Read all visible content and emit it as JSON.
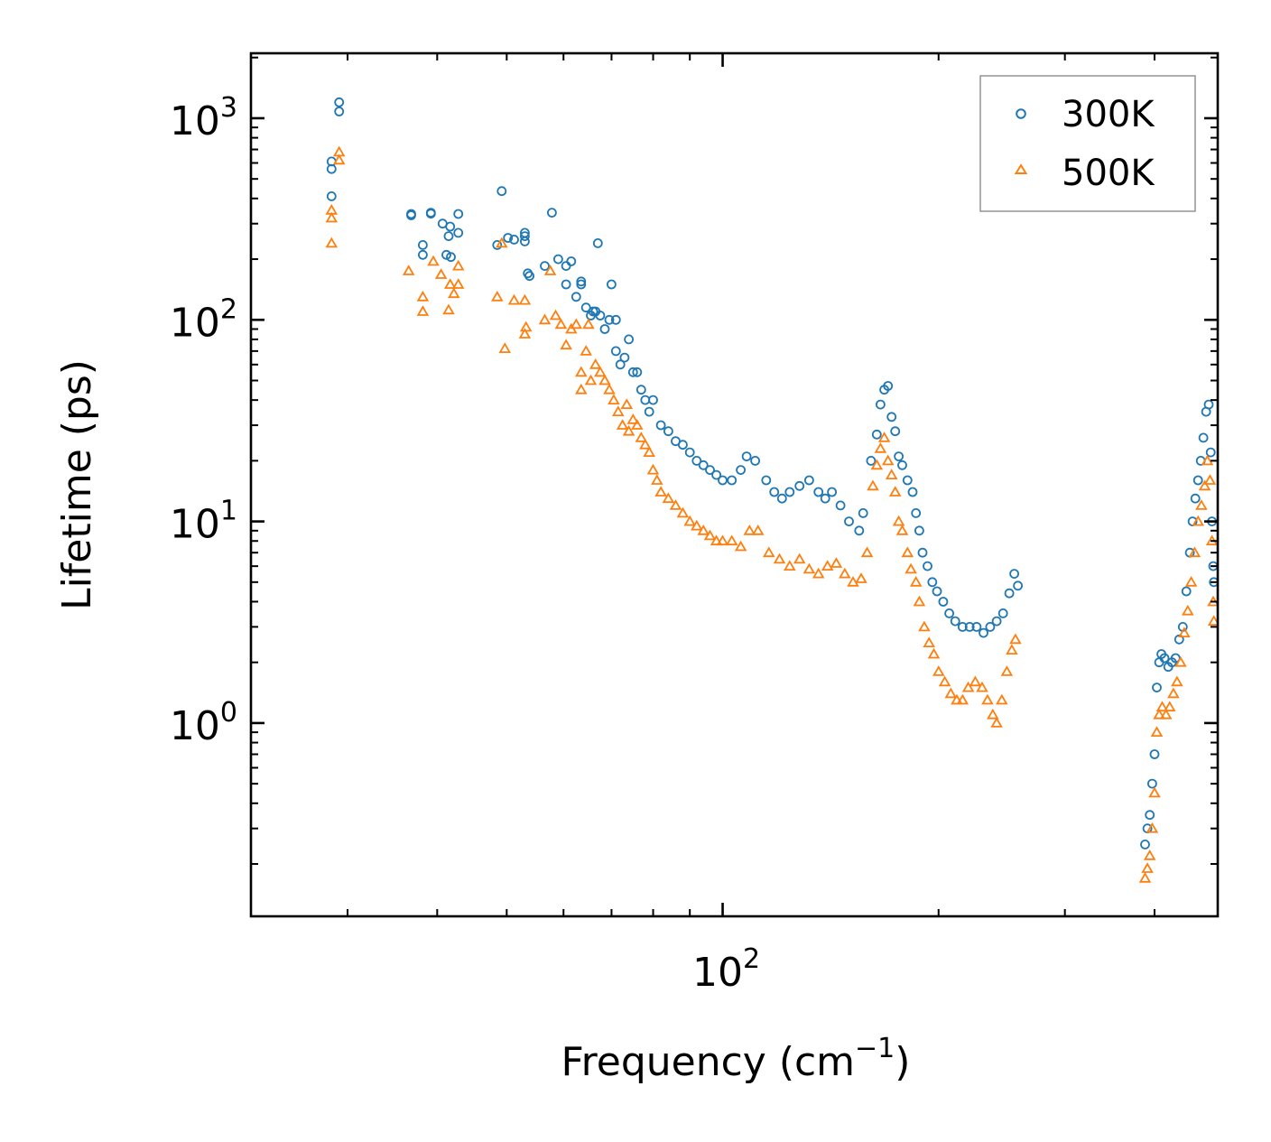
{
  "chart_data": {
    "type": "scatter",
    "xscale": "log",
    "yscale": "log",
    "xlabel": "Frequency (cm",
    "xlabel_sup": "−1",
    "xlabel_tail": ")",
    "ylabel": "Lifetime (ps)",
    "xlim": [
      22,
      490
    ],
    "ylim": [
      0.11,
      2100
    ],
    "x_ticks": [
      {
        "value": 100,
        "base": "10",
        "exp": "2"
      }
    ],
    "y_ticks": [
      {
        "value": 1,
        "base": "10",
        "exp": "0"
      },
      {
        "value": 10,
        "base": "10",
        "exp": "1"
      },
      {
        "value": 100,
        "base": "10",
        "exp": "2"
      },
      {
        "value": 1000,
        "base": "10",
        "exp": "3"
      }
    ],
    "legend_position": "top-right",
    "series": [
      {
        "name": "300K",
        "color": "#1f77b4",
        "marker": "circle",
        "points": [
          [
            28.5,
            410
          ],
          [
            28.5,
            560
          ],
          [
            28.5,
            610
          ],
          [
            29.2,
            1200
          ],
          [
            29.2,
            1080
          ],
          [
            36.8,
            335
          ],
          [
            36.8,
            330
          ],
          [
            38.2,
            235
          ],
          [
            38.2,
            210
          ],
          [
            39.2,
            340
          ],
          [
            39.2,
            336
          ],
          [
            40.7,
            300
          ],
          [
            41.7,
            290
          ],
          [
            41.5,
            260
          ],
          [
            41.8,
            205
          ],
          [
            41.2,
            210
          ],
          [
            42.8,
            335
          ],
          [
            42.8,
            270
          ],
          [
            48.5,
            235
          ],
          [
            49.2,
            435
          ],
          [
            50.2,
            255
          ],
          [
            51.2,
            250
          ],
          [
            53,
            270
          ],
          [
            53,
            260
          ],
          [
            53,
            245
          ],
          [
            53.5,
            170
          ],
          [
            53.8,
            165
          ],
          [
            56.5,
            185
          ],
          [
            57.8,
            340
          ],
          [
            59,
            200
          ],
          [
            60.5,
            150
          ],
          [
            60.5,
            185
          ],
          [
            61.5,
            195
          ],
          [
            62.5,
            130
          ],
          [
            63.5,
            155
          ],
          [
            63.5,
            150
          ],
          [
            64.5,
            115
          ],
          [
            65.5,
            105
          ],
          [
            66,
            110
          ],
          [
            67,
            240
          ],
          [
            66.5,
            110
          ],
          [
            67.5,
            105
          ],
          [
            68.5,
            90
          ],
          [
            69.5,
            100
          ],
          [
            70,
            150
          ],
          [
            71,
            100
          ],
          [
            71,
            70
          ],
          [
            72,
            60
          ],
          [
            73,
            65
          ],
          [
            74,
            80
          ],
          [
            75,
            55
          ],
          [
            76,
            55
          ],
          [
            77,
            45
          ],
          [
            78,
            40
          ],
          [
            79,
            35
          ],
          [
            80,
            40
          ],
          [
            82,
            30
          ],
          [
            84,
            28
          ],
          [
            86,
            25
          ],
          [
            88,
            24
          ],
          [
            90,
            22
          ],
          [
            92,
            20
          ],
          [
            94,
            19
          ],
          [
            96,
            18
          ],
          [
            98,
            17
          ],
          [
            100,
            16
          ],
          [
            103,
            16
          ],
          [
            106,
            18
          ],
          [
            108,
            21
          ],
          [
            111,
            20
          ],
          [
            115,
            16
          ],
          [
            118,
            14
          ],
          [
            121,
            13
          ],
          [
            124,
            14
          ],
          [
            128,
            15
          ],
          [
            132,
            16
          ],
          [
            136,
            14
          ],
          [
            139,
            13
          ],
          [
            142,
            14
          ],
          [
            146,
            12
          ],
          [
            150,
            10
          ],
          [
            155,
            9
          ],
          [
            157,
            11
          ],
          [
            161,
            20
          ],
          [
            164,
            27
          ],
          [
            166,
            38
          ],
          [
            168,
            45
          ],
          [
            170,
            47
          ],
          [
            172,
            33
          ],
          [
            174,
            28
          ],
          [
            176,
            21
          ],
          [
            178,
            19
          ],
          [
            181,
            16
          ],
          [
            184,
            14
          ],
          [
            186,
            11
          ],
          [
            188,
            9
          ],
          [
            190,
            7
          ],
          [
            193,
            6
          ],
          [
            196,
            5
          ],
          [
            199,
            4.5
          ],
          [
            203,
            4
          ],
          [
            207,
            3.5
          ],
          [
            211,
            3.2
          ],
          [
            216,
            3
          ],
          [
            221,
            3
          ],
          [
            226,
            3
          ],
          [
            231,
            2.8
          ],
          [
            236,
            3
          ],
          [
            241,
            3.2
          ],
          [
            246,
            3.5
          ],
          [
            251,
            4.4
          ],
          [
            255,
            5.5
          ],
          [
            258,
            4.8
          ],
          [
            388,
            0.25
          ],
          [
            391,
            0.3
          ],
          [
            394,
            0.35
          ],
          [
            397,
            0.5
          ],
          [
            400,
            0.7
          ],
          [
            403,
            1.5
          ],
          [
            406,
            2.0
          ],
          [
            409,
            2.2
          ],
          [
            413,
            2.1
          ],
          [
            418,
            1.9
          ],
          [
            423,
            2.0
          ],
          [
            428,
            2.1
          ],
          [
            433,
            2.6
          ],
          [
            438,
            3.0
          ],
          [
            443,
            4.5
          ],
          [
            448,
            7
          ],
          [
            452,
            10
          ],
          [
            456,
            13
          ],
          [
            460,
            16
          ],
          [
            464,
            20
          ],
          [
            468,
            26
          ],
          [
            472,
            35
          ],
          [
            476,
            38
          ],
          [
            479,
            22
          ],
          [
            481,
            10
          ],
          [
            483,
            6
          ],
          [
            484,
            5
          ]
        ]
      },
      {
        "name": "500K",
        "color": "#ff7f0e",
        "marker": "triangle",
        "points": [
          [
            28.5,
            240
          ],
          [
            28.5,
            320
          ],
          [
            28.5,
            350
          ],
          [
            29.2,
            680
          ],
          [
            29.2,
            620
          ],
          [
            36.5,
            175
          ],
          [
            38.2,
            130
          ],
          [
            38.2,
            110
          ],
          [
            39.5,
            195
          ],
          [
            40.5,
            168
          ],
          [
            41.5,
            112
          ],
          [
            41.7,
            150
          ],
          [
            42.2,
            135
          ],
          [
            42.8,
            185
          ],
          [
            42.8,
            150
          ],
          [
            48.5,
            130
          ],
          [
            49.2,
            240
          ],
          [
            49.7,
            72
          ],
          [
            51.2,
            125
          ],
          [
            53,
            125
          ],
          [
            53,
            85
          ],
          [
            53.2,
            92
          ],
          [
            56.5,
            100
          ],
          [
            57.5,
            175
          ],
          [
            58.5,
            105
          ],
          [
            59.5,
            95
          ],
          [
            60.5,
            75
          ],
          [
            61.5,
            90
          ],
          [
            62.5,
            95
          ],
          [
            63.5,
            55
          ],
          [
            63.5,
            45
          ],
          [
            64.5,
            70
          ],
          [
            65,
            95
          ],
          [
            65.5,
            50
          ],
          [
            66.5,
            60
          ],
          [
            67.5,
            55
          ],
          [
            68.5,
            50
          ],
          [
            69.5,
            45
          ],
          [
            70.5,
            40
          ],
          [
            71.5,
            35
          ],
          [
            72.5,
            30
          ],
          [
            73.5,
            38
          ],
          [
            74,
            28
          ],
          [
            75,
            32
          ],
          [
            76,
            30
          ],
          [
            77,
            26
          ],
          [
            78,
            24
          ],
          [
            79,
            22
          ],
          [
            80,
            18
          ],
          [
            81,
            16
          ],
          [
            82,
            14
          ],
          [
            84,
            13
          ],
          [
            86,
            12
          ],
          [
            88,
            11
          ],
          [
            90,
            10
          ],
          [
            92,
            9.5
          ],
          [
            94,
            9
          ],
          [
            96,
            8.5
          ],
          [
            98,
            8
          ],
          [
            100,
            8
          ],
          [
            103,
            8
          ],
          [
            106,
            7.5
          ],
          [
            109,
            9
          ],
          [
            112,
            9
          ],
          [
            116,
            7
          ],
          [
            120,
            6.5
          ],
          [
            124,
            6
          ],
          [
            128,
            6.5
          ],
          [
            132,
            5.8
          ],
          [
            136,
            5.5
          ],
          [
            140,
            6
          ],
          [
            144,
            6.2
          ],
          [
            148,
            5.5
          ],
          [
            152,
            5
          ],
          [
            156,
            5.2
          ],
          [
            159,
            7
          ],
          [
            162,
            15
          ],
          [
            164,
            19
          ],
          [
            166,
            23
          ],
          [
            168,
            26
          ],
          [
            170,
            20
          ],
          [
            172,
            17
          ],
          [
            174,
            14
          ],
          [
            176,
            10
          ],
          [
            178,
            9
          ],
          [
            181,
            7
          ],
          [
            183,
            5.8
          ],
          [
            186,
            5
          ],
          [
            188,
            4
          ],
          [
            191,
            3
          ],
          [
            194,
            2.5
          ],
          [
            197,
            2.2
          ],
          [
            200,
            1.8
          ],
          [
            204,
            1.6
          ],
          [
            208,
            1.4
          ],
          [
            212,
            1.3
          ],
          [
            216,
            1.3
          ],
          [
            220,
            1.5
          ],
          [
            225,
            1.6
          ],
          [
            230,
            1.5
          ],
          [
            234,
            1.3
          ],
          [
            238,
            1.1
          ],
          [
            241,
            1.0
          ],
          [
            245,
            1.3
          ],
          [
            249,
            1.8
          ],
          [
            253,
            2.3
          ],
          [
            256,
            2.6
          ],
          [
            388,
            0.17
          ],
          [
            391,
            0.19
          ],
          [
            394,
            0.22
          ],
          [
            397,
            0.3
          ],
          [
            400,
            0.45
          ],
          [
            403,
            0.9
          ],
          [
            406,
            1.1
          ],
          [
            410,
            1.2
          ],
          [
            415,
            1.1
          ],
          [
            420,
            1.2
          ],
          [
            425,
            1.4
          ],
          [
            430,
            1.6
          ],
          [
            435,
            2.0
          ],
          [
            440,
            2.8
          ],
          [
            445,
            3.6
          ],
          [
            450,
            5
          ],
          [
            455,
            7
          ],
          [
            460,
            10
          ],
          [
            465,
            12
          ],
          [
            470,
            15
          ],
          [
            474,
            20
          ],
          [
            478,
            16
          ],
          [
            481,
            8
          ],
          [
            483,
            4
          ],
          [
            484,
            3.2
          ]
        ]
      }
    ]
  }
}
